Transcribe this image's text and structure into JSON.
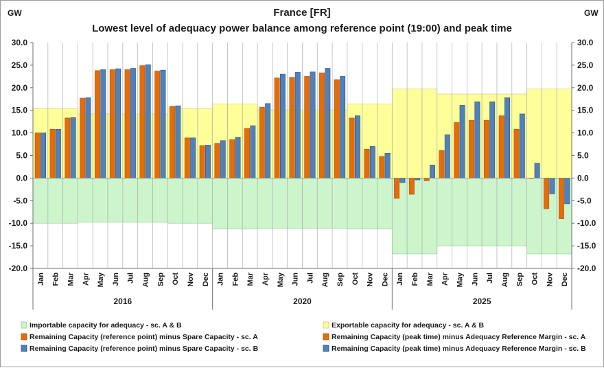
{
  "chart_data": {
    "type": "bar",
    "title": "France [FR]",
    "subtitle": "Lowest level of adequacy power balance among reference point (19:00) and peak time",
    "ylabel_left": "GW",
    "ylabel_right": "GW",
    "ylim": [
      -20,
      30
    ],
    "yticks": [
      "30.0",
      "25.0",
      "20.0",
      "15.0",
      "10.0",
      "5.0",
      "0.0",
      "-5.0",
      "-10.0",
      "-15.0",
      "-20.0"
    ],
    "ytick_values": [
      30,
      25,
      20,
      15,
      10,
      5,
      0,
      -5,
      -10,
      -15,
      -20
    ],
    "grid": "vertical",
    "legend_position": "bottom",
    "months": [
      "Jan",
      "Feb",
      "Mar",
      "Apr",
      "May",
      "Jun",
      "Jul",
      "Aug",
      "Sep",
      "Oct",
      "Nov",
      "Dec"
    ],
    "years": [
      "2016",
      "2020",
      "2025"
    ],
    "colors": {
      "import": "#ccf5cc",
      "export": "#ffff99",
      "orange": "#e46c0a",
      "blue": "#4f81bd",
      "orange_dark": "#b5530a",
      "blue_dark": "#2f4f7f",
      "grid": "#b8b8b8",
      "axis": "#707070"
    },
    "series": [
      {
        "name": "Importable capacity for adequacy - sc. A & B",
        "style": "area",
        "values": [
          [
            -10.0,
            -10.0,
            -10.0,
            -9.8,
            -9.8,
            -9.8,
            -9.8,
            -9.8,
            -9.8,
            -10.0,
            -10.0,
            -10.0
          ],
          [
            -11.3,
            -11.3,
            -11.3,
            -11.1,
            -11.1,
            -11.1,
            -11.1,
            -11.1,
            -11.1,
            -11.3,
            -11.3,
            -11.3
          ],
          [
            -16.8,
            -16.8,
            -16.8,
            -15.0,
            -15.0,
            -15.0,
            -15.0,
            -15.0,
            -15.0,
            -16.8,
            -16.8,
            -16.8
          ]
        ]
      },
      {
        "name": "Exportable capacity for adequacy - sc. A & B",
        "style": "area",
        "values": [
          [
            15.4,
            15.4,
            15.4,
            14.2,
            14.2,
            14.2,
            14.2,
            14.2,
            14.2,
            15.4,
            15.4,
            15.4
          ],
          [
            16.4,
            16.4,
            16.4,
            15.1,
            15.1,
            15.1,
            15.1,
            15.1,
            15.1,
            16.4,
            16.4,
            16.4
          ],
          [
            19.7,
            19.7,
            19.7,
            18.6,
            18.6,
            18.6,
            18.6,
            18.6,
            18.6,
            19.7,
            19.7,
            19.7
          ]
        ]
      },
      {
        "name": "Remaining Capacity (reference point) minus Spare Capacity - sc. A",
        "style": "bar-left",
        "values": [
          [
            10.0,
            10.8,
            13.3,
            17.7,
            23.8,
            24.0,
            24.0,
            24.9,
            23.7,
            15.9,
            8.9,
            7.2
          ],
          [
            7.7,
            8.5,
            11.0,
            15.7,
            22.2,
            22.3,
            22.5,
            23.3,
            21.8,
            13.3,
            6.4,
            4.8
          ],
          [
            -4.5,
            -3.6,
            -0.6,
            6.1,
            12.3,
            12.8,
            12.8,
            13.8,
            10.8,
            0.0,
            -6.8,
            -9.0
          ]
        ]
      },
      {
        "name": "Remaining Capacity (peak time) minus Adequacy Reference Margin - sc. A",
        "style": "legend-only",
        "values": [
          [],
          [],
          []
        ]
      },
      {
        "name": "Remaining Capacity (reference point) minus Spare Capacity - sc. B",
        "style": "bar-right",
        "values": [
          [
            10.0,
            10.8,
            13.4,
            17.8,
            24.0,
            24.2,
            24.3,
            25.1,
            23.9,
            16.0,
            8.9,
            7.3
          ],
          [
            8.3,
            9.0,
            11.6,
            16.5,
            23.0,
            23.4,
            23.5,
            24.3,
            22.5,
            13.8,
            7.0,
            5.5
          ],
          [
            -1.0,
            -0.4,
            2.9,
            9.6,
            16.1,
            16.9,
            16.9,
            17.8,
            14.2,
            3.3,
            -3.5,
            -5.7
          ]
        ]
      },
      {
        "name": "Remaining Capacity (peak time) minus Adequacy Reference Margin - sc. B",
        "style": "legend-only",
        "values": [
          [],
          [],
          []
        ]
      }
    ]
  }
}
